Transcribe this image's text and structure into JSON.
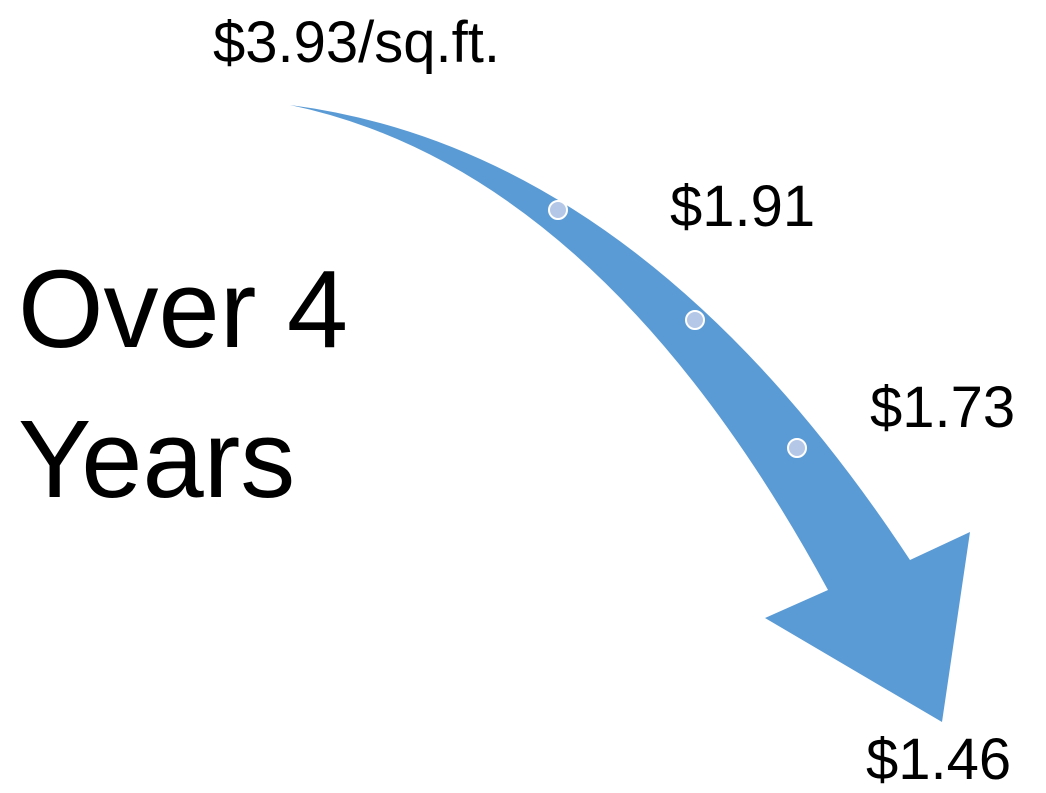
{
  "title": "Over 4 Years",
  "points": [
    {
      "label": "$3.93/sq.ft."
    },
    {
      "label": "$1.91"
    },
    {
      "label": "$1.73"
    },
    {
      "label": "$1.46"
    }
  ]
}
